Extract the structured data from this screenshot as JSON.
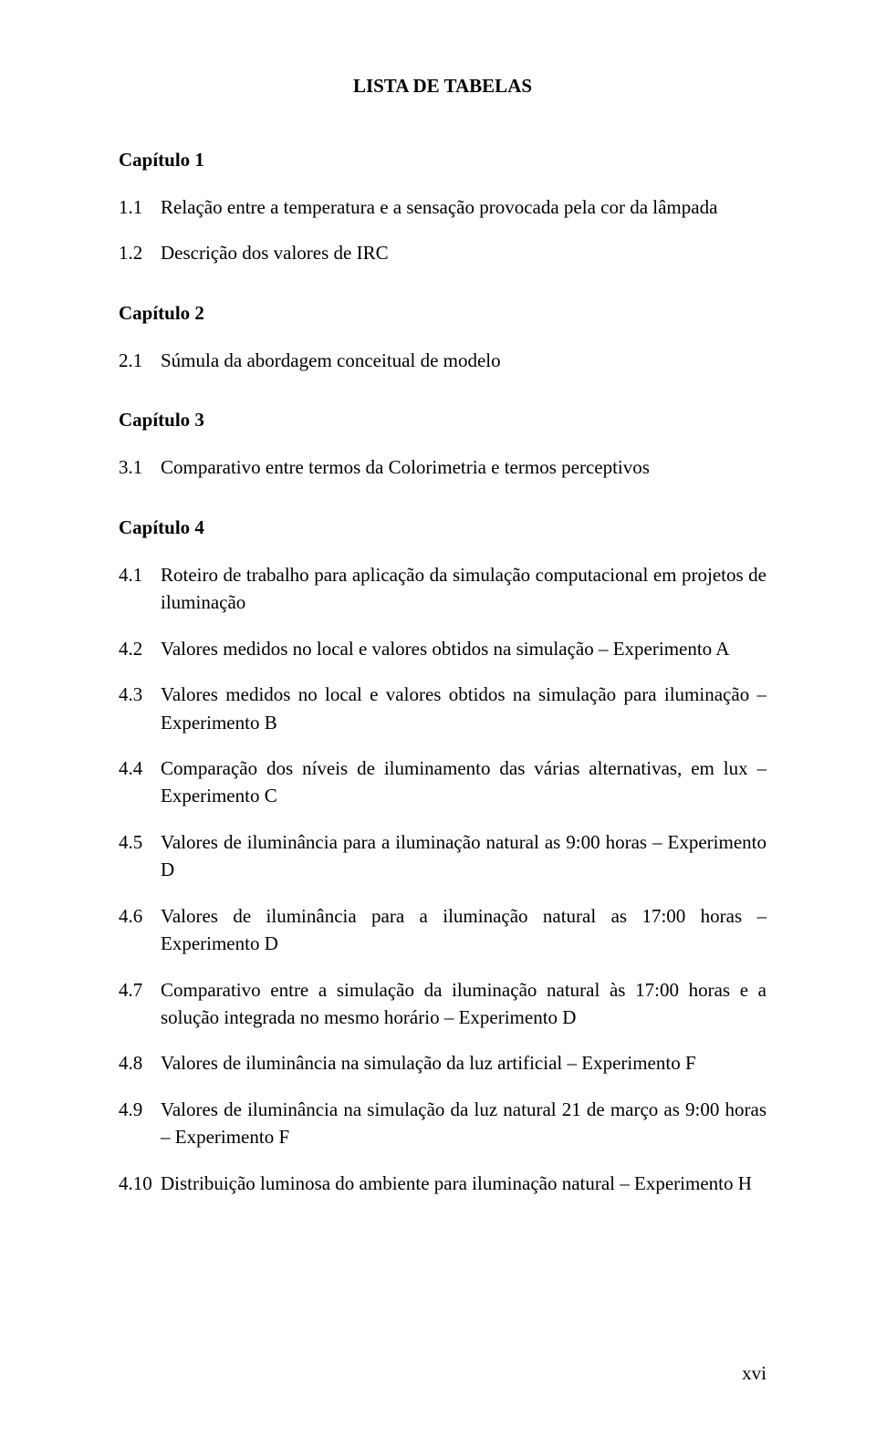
{
  "typography": {
    "font_family": "Times New Roman",
    "title_fontsize": 21,
    "title_weight": "bold",
    "heading_fontsize": 21,
    "heading_weight": "bold",
    "body_fontsize": 21,
    "body_weight": "normal",
    "text_color": "#000000",
    "background_color": "#ffffff",
    "line_height": 1.45,
    "alignment": "justify"
  },
  "title": "LISTA DE TABELAS",
  "chapters": [
    {
      "heading": "Capítulo 1",
      "entries": [
        {
          "num": "1.1",
          "text": "Relação entre a temperatura e a sensação provocada pela cor da lâmpada"
        },
        {
          "num": "1.2",
          "text": "Descrição dos valores de IRC"
        }
      ]
    },
    {
      "heading": "Capítulo 2",
      "entries": [
        {
          "num": "2.1",
          "text": "Súmula da abordagem conceitual de modelo"
        }
      ]
    },
    {
      "heading": "Capítulo 3",
      "entries": [
        {
          "num": "3.1",
          "text": "Comparativo entre termos da Colorimetria e termos perceptivos"
        }
      ]
    },
    {
      "heading": "Capítulo 4",
      "entries": [
        {
          "num": "4.1",
          "text": "Roteiro de trabalho para aplicação da simulação computacional em projetos de iluminação"
        },
        {
          "num": "4.2",
          "text": "Valores medidos no local e valores obtidos na simulação – Experimento A"
        },
        {
          "num": "4.3",
          "text": "Valores medidos no local e valores obtidos na simulação para iluminação – Experimento B"
        },
        {
          "num": "4.4",
          "text": "Comparação dos níveis de iluminamento das várias alternativas, em lux – Experimento C"
        },
        {
          "num": "4.5",
          "text": "Valores de iluminância para a iluminação natural as 9:00 horas – Experimento D"
        },
        {
          "num": "4.6",
          "text": "Valores de iluminância para a iluminação natural as 17:00 horas – Experimento D"
        },
        {
          "num": "4.7",
          "text": "Comparativo entre a simulação da iluminação natural às 17:00 horas e a solução integrada no mesmo horário – Experimento D"
        },
        {
          "num": "4.8",
          "text": "Valores de iluminância na simulação da luz artificial – Experimento F"
        },
        {
          "num": "4.9",
          "text": "Valores de iluminância na simulação da luz natural 21 de março as 9:00 horas – Experimento F"
        },
        {
          "num": "4.10",
          "text": "Distribuição luminosa do ambiente para iluminação natural – Experimento H"
        }
      ]
    }
  ],
  "page_number": "xvi"
}
